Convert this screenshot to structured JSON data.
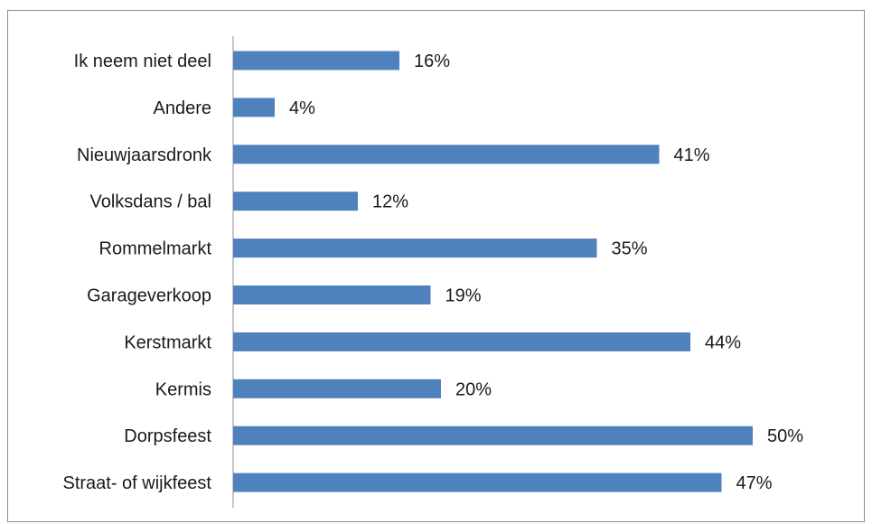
{
  "chart_data": {
    "type": "bar",
    "orientation": "horizontal",
    "categories": [
      "Ik neem niet deel",
      "Andere",
      "Nieuwjaarsdronk",
      "Volksdans / bal",
      "Rommelmarkt",
      "Garageverkoop",
      "Kerstmarkt",
      "Kermis",
      "Dorpsfeest",
      "Straat- of wijkfeest"
    ],
    "values": [
      16,
      4,
      41,
      12,
      35,
      19,
      44,
      20,
      50,
      47
    ],
    "value_labels": [
      "16%",
      "4%",
      "41%",
      "12%",
      "35%",
      "19%",
      "44%",
      "20%",
      "50%",
      "47%"
    ],
    "xlim": [
      0,
      52
    ],
    "bar_color": "#4f81bd",
    "grid": false,
    "legend": "none"
  }
}
